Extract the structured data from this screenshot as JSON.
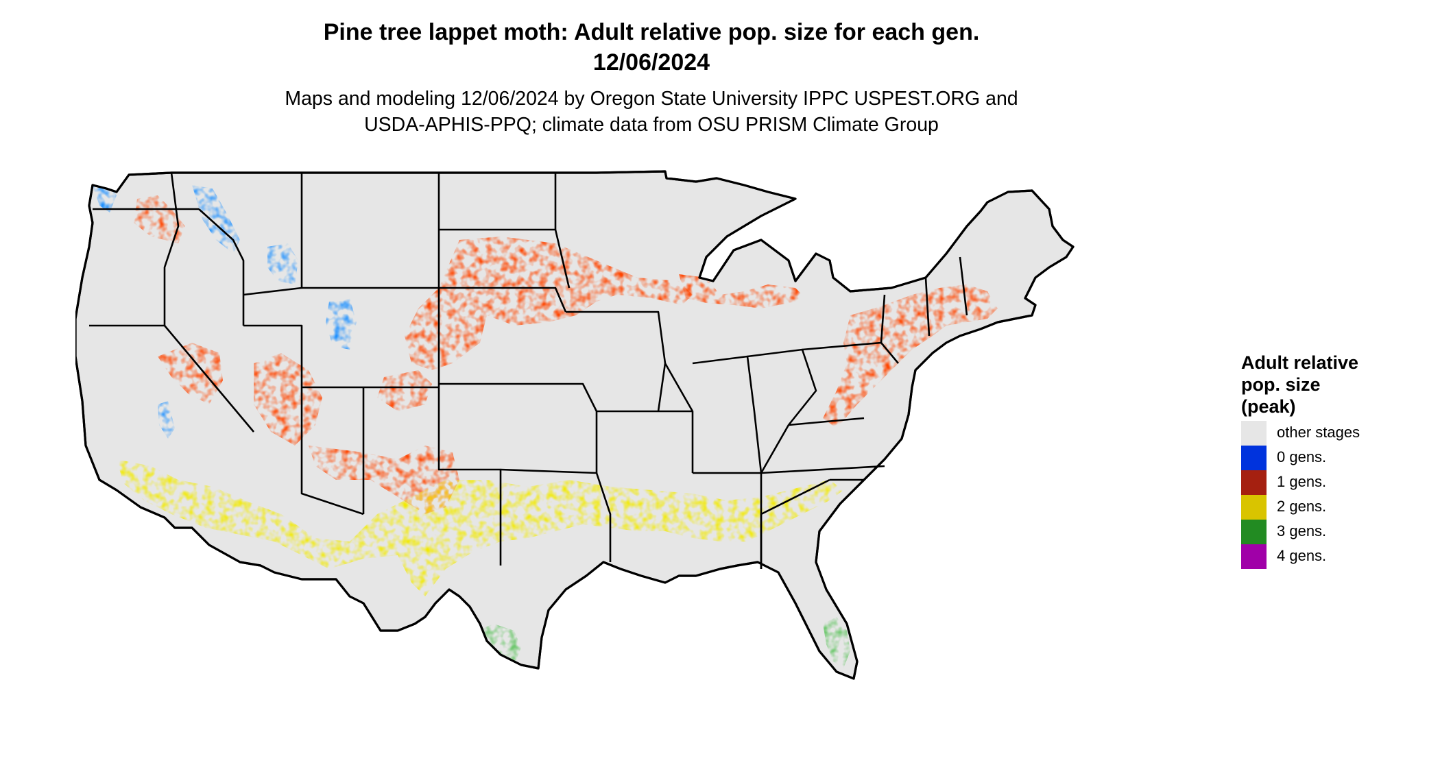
{
  "header": {
    "title_line1": "Pine tree lappet moth: Adult relative pop. size for each gen.",
    "title_line2": "12/06/2024",
    "subtitle_line1": "Maps and modeling 12/06/2024 by Oregon State University IPPC USPEST.ORG and",
    "subtitle_line2": "USDA-APHIS-PPQ; climate data from OSU PRISM Climate Group"
  },
  "map": {
    "region": "Contiguous United States",
    "background_color": "#e6e6e6",
    "border_color": "#000000"
  },
  "legend": {
    "title_line1": "Adult relative",
    "title_line2": "pop. size",
    "title_line3": "(peak)",
    "items": [
      {
        "label": "other stages",
        "color": "#e6e6e6"
      },
      {
        "label": "0 gens.",
        "color": "#0033dd"
      },
      {
        "label": "1 gens.",
        "color": "#a52010"
      },
      {
        "label": "2 gens.",
        "color": "#d9c400"
      },
      {
        "label": "3 gens.",
        "color": "#228b22"
      },
      {
        "label": "4 gens.",
        "color": "#a000a8"
      }
    ]
  }
}
